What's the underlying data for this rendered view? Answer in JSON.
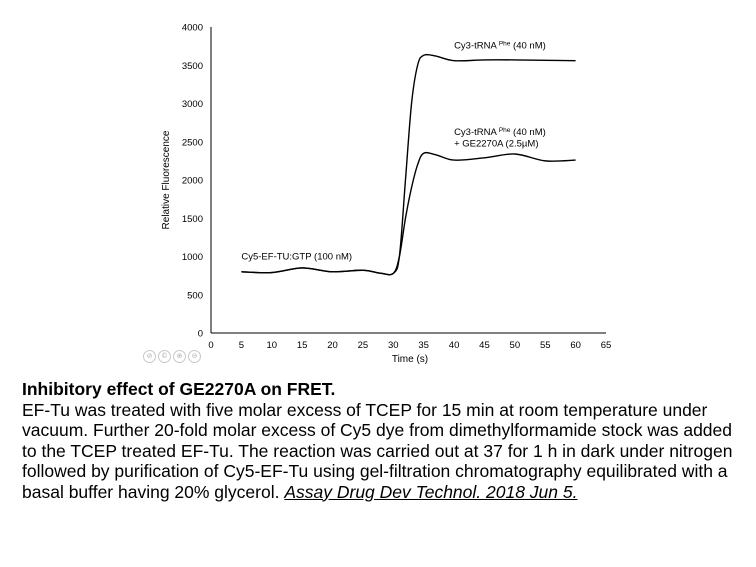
{
  "chart_data": {
    "type": "line",
    "xlabel": "Time (s)",
    "ylabel": "Relative Fluorescence",
    "xlim": [
      0,
      65
    ],
    "ylim": [
      0,
      4000
    ],
    "x_ticks": [
      0,
      5,
      10,
      15,
      20,
      25,
      30,
      35,
      40,
      45,
      50,
      55,
      60,
      65
    ],
    "y_ticks": [
      0,
      500,
      1000,
      1500,
      2000,
      2500,
      3000,
      3500,
      4000
    ],
    "grid": false,
    "series": [
      {
        "color": "#000000",
        "points": [
          [
            5,
            800
          ],
          [
            10,
            790
          ],
          [
            15,
            850
          ],
          [
            20,
            800
          ],
          [
            25,
            820
          ],
          [
            28,
            780
          ],
          [
            30,
            780
          ],
          [
            31,
            1000
          ],
          [
            32,
            2000
          ],
          [
            33,
            3000
          ],
          [
            34,
            3500
          ],
          [
            35,
            3630
          ],
          [
            37,
            3620
          ],
          [
            40,
            3560
          ],
          [
            45,
            3570
          ],
          [
            50,
            3570
          ],
          [
            55,
            3565
          ],
          [
            60,
            3560
          ]
        ]
      },
      {
        "color": "#000000",
        "points": [
          [
            5,
            800
          ],
          [
            10,
            790
          ],
          [
            15,
            850
          ],
          [
            20,
            800
          ],
          [
            25,
            820
          ],
          [
            28,
            780
          ],
          [
            30,
            780
          ],
          [
            31,
            1000
          ],
          [
            32,
            1500
          ],
          [
            33,
            1900
          ],
          [
            34,
            2200
          ],
          [
            35,
            2350
          ],
          [
            37,
            2330
          ],
          [
            40,
            2260
          ],
          [
            45,
            2290
          ],
          [
            50,
            2340
          ],
          [
            55,
            2250
          ],
          [
            60,
            2260
          ]
        ]
      }
    ],
    "annotations": [
      {
        "id": "upper",
        "text": "Cy3-tRNA",
        "sup": "Phe",
        "tail": " (40 nM)",
        "x": 40,
        "y": 3720
      },
      {
        "id": "lower1",
        "text": "Cy3-tRNA",
        "sup": "Phe",
        "tail": " (40 nM)",
        "x": 40,
        "y": 2590
      },
      {
        "id": "lower2",
        "text": "+    GE2270A (2.5µM)",
        "sup": "",
        "tail": "",
        "x": 40,
        "y": 2440
      },
      {
        "id": "base",
        "text": "Cy5-EF-TU:GTP (100 nM)",
        "sup": "",
        "tail": "",
        "x": 5,
        "y": 960
      }
    ]
  },
  "toolbar": {
    "icons": [
      "no-entry-icon",
      "copyright-icon",
      "zoom-icon",
      "minus-icon"
    ],
    "glyphs": [
      "⊘",
      "©",
      "⊕",
      "⊖"
    ]
  },
  "caption": {
    "title": "Inhibitory effect of GE2270A on FRET.",
    "body": "EF-Tu was treated with five molar excess of TCEP for 15 min at room temperature under vacuum. Further 20-fold molar excess of Cy5 dye from dimethylformamide stock was added to the TCEP treated EF-Tu. The reaction was carried out at 37   for 1 h in dark under nitrogen followed by purification of Cy5-EF-Tu using gel-filtration chromatography equilibrated with a basal buffer having 20% glycerol. ",
    "citation": "Assay Drug Dev Technol. 2018 Jun 5."
  }
}
